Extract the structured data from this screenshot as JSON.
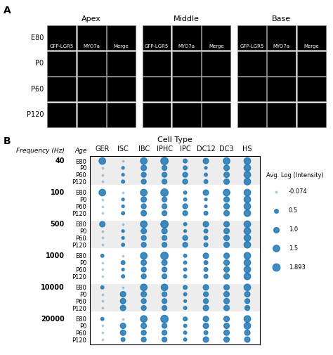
{
  "chart_data": [
    {
      "type": "image_grid",
      "title": "A",
      "column_groups": [
        "Apex",
        "Middle",
        "Base"
      ],
      "columns": [
        "GFP-LGR5",
        "MYO7a",
        "Merge"
      ],
      "rows": [
        "E80",
        "P0",
        "P60",
        "P120"
      ]
    },
    {
      "type": "bubble",
      "title": "B",
      "x_label": "Cell Type",
      "group_label": "Frequency (Hz)",
      "row_label": "Age",
      "categories": [
        "GER",
        "ISC",
        "IBC",
        "IPHC",
        "IPC",
        "DC12",
        "DC3",
        "HS"
      ],
      "groups": [
        40,
        100,
        500,
        1000,
        10000,
        20000
      ],
      "rows": [
        "E80",
        "P0",
        "P60",
        "P120"
      ],
      "sizes": [
        [
          [
            1.5,
            0.0,
            1.5,
            1.893,
            0.5,
            1.0,
            1.5,
            1.5
          ],
          [
            0.0,
            0.2,
            1.0,
            0.8,
            0.5,
            0.2,
            1.0,
            1.5
          ],
          [
            0.0,
            0.2,
            0.8,
            0.8,
            0.8,
            0.3,
            1.0,
            1.5
          ],
          [
            0.0,
            0.3,
            0.8,
            0.8,
            0.8,
            0.5,
            1.0,
            1.5
          ]
        ],
        [
          [
            1.5,
            0.0,
            1.5,
            1.893,
            0.3,
            1.0,
            1.5,
            1.5
          ],
          [
            0.0,
            0.2,
            1.0,
            0.8,
            0.3,
            0.2,
            1.0,
            1.5
          ],
          [
            0.0,
            0.2,
            0.8,
            0.8,
            0.8,
            0.2,
            1.0,
            1.5
          ],
          [
            0.0,
            0.3,
            1.0,
            0.8,
            0.8,
            0.5,
            1.0,
            1.5
          ]
        ],
        [
          [
            1.0,
            0.0,
            1.5,
            1.893,
            0.3,
            1.0,
            1.0,
            1.5
          ],
          [
            0.0,
            0.2,
            1.0,
            1.0,
            0.2,
            0.5,
            1.0,
            1.5
          ],
          [
            0.0,
            0.2,
            0.8,
            0.8,
            0.8,
            0.5,
            1.0,
            1.5
          ],
          [
            0.0,
            0.3,
            0.8,
            0.8,
            0.8,
            0.5,
            1.0,
            1.5
          ]
        ],
        [
          [
            0.3,
            0.0,
            1.5,
            1.893,
            0.3,
            1.0,
            1.0,
            1.5
          ],
          [
            0.0,
            0.5,
            1.0,
            1.0,
            0.3,
            0.5,
            1.0,
            1.5
          ],
          [
            0.0,
            0.2,
            0.8,
            0.8,
            0.3,
            0.5,
            1.0,
            1.5
          ],
          [
            0.0,
            0.3,
            0.8,
            0.8,
            0.3,
            0.5,
            1.0,
            1.5
          ]
        ],
        [
          [
            0.3,
            0.0,
            1.5,
            1.5,
            0.5,
            1.0,
            1.0,
            1.5
          ],
          [
            0.0,
            1.0,
            1.0,
            0.8,
            0.3,
            0.8,
            1.0,
            1.0
          ],
          [
            0.0,
            1.0,
            0.8,
            0.8,
            0.2,
            0.8,
            1.0,
            0.8
          ],
          [
            0.0,
            1.0,
            0.8,
            0.8,
            0.3,
            1.0,
            1.0,
            0.8
          ]
        ],
        [
          [
            0.3,
            0.0,
            1.5,
            1.893,
            0.5,
            1.0,
            1.0,
            1.5
          ],
          [
            0.0,
            1.0,
            1.0,
            0.8,
            0.3,
            1.0,
            1.0,
            1.5
          ],
          [
            0.0,
            1.0,
            0.8,
            0.8,
            0.3,
            0.5,
            1.0,
            1.0
          ],
          [
            0.0,
            0.5,
            0.8,
            0.8,
            0.3,
            1.0,
            1.0,
            1.0
          ]
        ]
      ],
      "size_legend": {
        "title": "Avg. Log (Intensity)",
        "values": [
          {
            "value": -0.074,
            "label": "-0.074"
          },
          {
            "value": 0.5,
            "label": "0.5"
          },
          {
            "value": 1.0,
            "label": "1.0"
          },
          {
            "value": 1.5,
            "label": "1.5"
          },
          {
            "value": 1.893,
            "label": "1.893"
          }
        ]
      }
    }
  ]
}
